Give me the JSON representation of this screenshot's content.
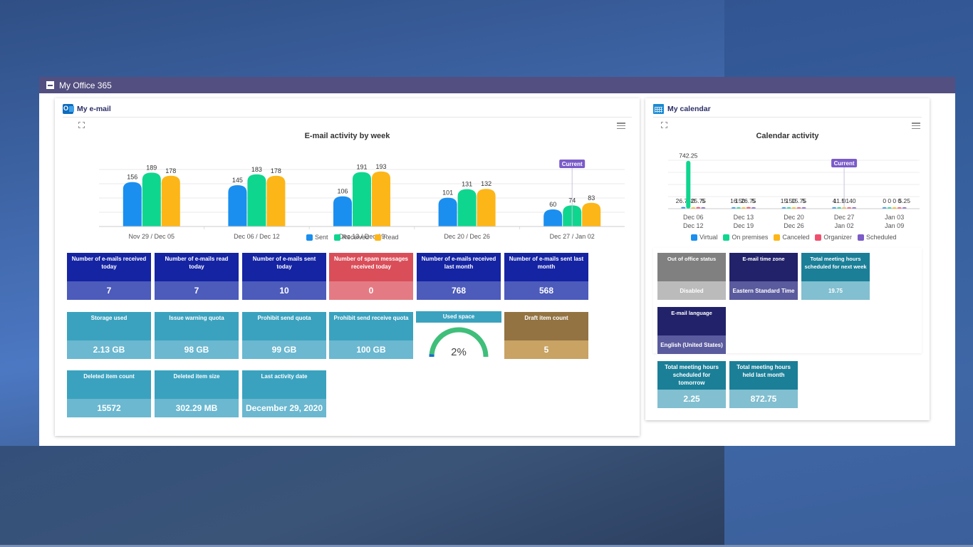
{
  "portal": {
    "title": "My Office 365"
  },
  "email": {
    "title": "My e-mail",
    "chart_title": "E-mail activity by week",
    "current_marker": "Current",
    "legend": [
      {
        "label": "Sent",
        "color": "#1a8fef"
      },
      {
        "label": "Received",
        "color": "#0fd68f"
      },
      {
        "label": "Read",
        "color": "#fdb618"
      }
    ],
    "tiles_row1": [
      {
        "label": "Number of e-mails received today",
        "value": "7"
      },
      {
        "label": "Number of e-mails read today",
        "value": "7"
      },
      {
        "label": "Number of e-mails sent today",
        "value": "10"
      },
      {
        "label": "Number of spam messages received today",
        "value": "0"
      },
      {
        "label": "Number of e-mails received last month",
        "value": "768"
      },
      {
        "label": "Number of e-mails sent last month",
        "value": "568"
      }
    ],
    "tiles_row2": [
      {
        "label": "Storage used",
        "value": "2.13 GB"
      },
      {
        "label": "Issue warning quota",
        "value": "98 GB"
      },
      {
        "label": "Prohibit send quota",
        "value": "99 GB"
      },
      {
        "label": "Prohibit send receive quota",
        "value": "100 GB"
      },
      {
        "label": "Draft item count",
        "value": "5"
      }
    ],
    "used_space": {
      "label": "Used space",
      "value_text": "2%",
      "percent": 2
    },
    "tiles_row3": [
      {
        "label": "Deleted item count",
        "value": "15572"
      },
      {
        "label": "Deleted item size",
        "value": "302.29 MB"
      },
      {
        "label": "Last activity date",
        "value": "December 29, 2020"
      }
    ]
  },
  "calendar": {
    "title": "My calendar",
    "chart_title": "Calendar activity",
    "current_marker": "Current",
    "legend": [
      {
        "label": "Virtual",
        "color": "#1a8fef"
      },
      {
        "label": "On premises",
        "color": "#0fd68f"
      },
      {
        "label": "Canceled",
        "color": "#fdb618"
      },
      {
        "label": "Organizer",
        "color": "#f0506e"
      },
      {
        "label": "Scheduled",
        "color": "#7c5cc8"
      }
    ],
    "tiles_row1": [
      {
        "label": "Out of office status",
        "value": "Disabled"
      },
      {
        "label": "E-mail time zone",
        "value": "Eastern Standard Time"
      },
      {
        "label": "Total meeting hours scheduled for next week",
        "value": "19.75"
      }
    ],
    "tiles_row2": [
      {
        "label": "E-mail language",
        "value": "English (United States)"
      }
    ],
    "tiles_row3": [
      {
        "label": "Total meeting hours scheduled for tomorrow",
        "value": "2.25"
      },
      {
        "label": "Total meeting hours held last month",
        "value": "872.75"
      }
    ]
  },
  "chart_data": [
    {
      "type": "bar",
      "title": "E-mail activity by week",
      "categories": [
        "Nov 29 / Dec 05",
        "Dec 06 / Dec 12",
        "Dec 13 / Dec 19",
        "Dec 20 / Dec 26",
        "Dec 27 / Jan 02"
      ],
      "series": [
        {
          "name": "Sent",
          "values": [
            156,
            145,
            106,
            101,
            60
          ]
        },
        {
          "name": "Received",
          "values": [
            189,
            183,
            191,
            131,
            74
          ]
        },
        {
          "name": "Read",
          "values": [
            178,
            178,
            193,
            132,
            83
          ]
        }
      ],
      "ylim": [
        0,
        200
      ],
      "current_category": "Dec 27 / Jan 02",
      "legend_position": "bottom"
    },
    {
      "type": "bar",
      "title": "Calendar activity",
      "categories": [
        [
          "Dec 06",
          "Dec 12"
        ],
        [
          "Dec 13",
          "Dec 19"
        ],
        [
          "Dec 20",
          "Dec 26"
        ],
        [
          "Dec 27",
          "Jan 02"
        ],
        [
          "Jan 03",
          "Jan 09"
        ]
      ],
      "series": [
        {
          "name": "Virtual",
          "values": [
            26.75,
            16,
            15,
            4,
            0
          ]
        },
        {
          "name": "On premises",
          "values": [
            742.25,
            15,
            15,
            11.5,
            0
          ]
        },
        {
          "name": "Canceled",
          "values": [
            0,
            0,
            0,
            0,
            0
          ]
        },
        {
          "name": "Organizer",
          "values": [
            25.75,
            26.75,
            15.75,
            14,
            0
          ]
        },
        {
          "name": "Scheduled",
          "values": [
            5,
            5,
            5,
            0,
            5.25
          ]
        }
      ],
      "ylim": [
        0,
        750
      ],
      "current_category": "Dec 27 / Jan 02",
      "legend_position": "bottom"
    }
  ]
}
